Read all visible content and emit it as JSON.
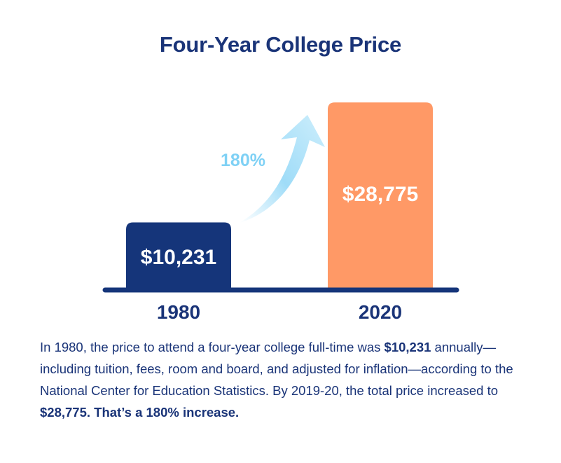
{
  "title": "Four-Year College Price",
  "chart_data": {
    "type": "bar",
    "title": "Four-Year College Price",
    "categories": [
      "1980",
      "2020"
    ],
    "values": [
      10231,
      28775
    ],
    "value_labels": [
      "$10,231",
      "$28,775"
    ],
    "xlabel": "",
    "ylabel": "",
    "ylim": [
      0,
      30000
    ],
    "grid": false,
    "legend": "none",
    "annotations": [
      {
        "text": "180%",
        "from": "1980",
        "to": "2020"
      }
    ],
    "colors": [
      "#15357a",
      "#ff9966"
    ],
    "arrow_color": "#7fd1f5",
    "baseline_color": "#15357a"
  },
  "description": {
    "p1": "In 1980, the price to attend a four-year college full-time was ",
    "b1": "$10,231",
    "p2": " annually—including tuition, fees, room and board, and adjusted for inflation—according to the National Center for Education Statistics. By 2019-20, the total price increased to ",
    "b2": "$28,775. That’s a 180% increase."
  }
}
